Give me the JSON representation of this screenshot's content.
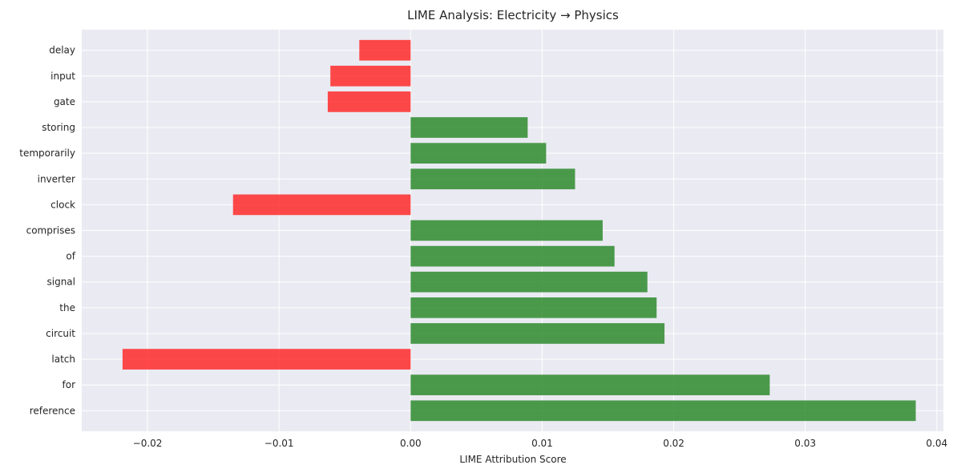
{
  "chart_data": {
    "type": "bar",
    "orientation": "horizontal",
    "title": "LIME Analysis: Electricity → Physics",
    "xlabel": "LIME Attribution Score",
    "ylabel": "",
    "xlim": [
      -0.025,
      0.0405
    ],
    "x_ticks": [
      -0.02,
      -0.01,
      0.0,
      0.01,
      0.02,
      0.03,
      0.04
    ],
    "x_tick_labels": [
      "−0.02",
      "−0.01",
      "0.00",
      "0.01",
      "0.02",
      "0.03",
      "0.04"
    ],
    "grid": true,
    "categories": [
      "reference",
      "for",
      "latch",
      "circuit",
      "the",
      "signal",
      "of",
      "comprises",
      "clock",
      "inverter",
      "temporarily",
      "storing",
      "gate",
      "input",
      "delay"
    ],
    "values": [
      0.0384,
      0.0273,
      -0.0219,
      0.0193,
      0.0187,
      0.018,
      0.0155,
      0.0146,
      -0.0135,
      0.0125,
      0.0103,
      0.0089,
      -0.0063,
      -0.0061,
      -0.0039
    ],
    "colors": {
      "positive": "#2e8b2e",
      "negative": "#ff2a2a",
      "plot_background": "#eaeaf2",
      "grid": "#ffffff"
    }
  }
}
